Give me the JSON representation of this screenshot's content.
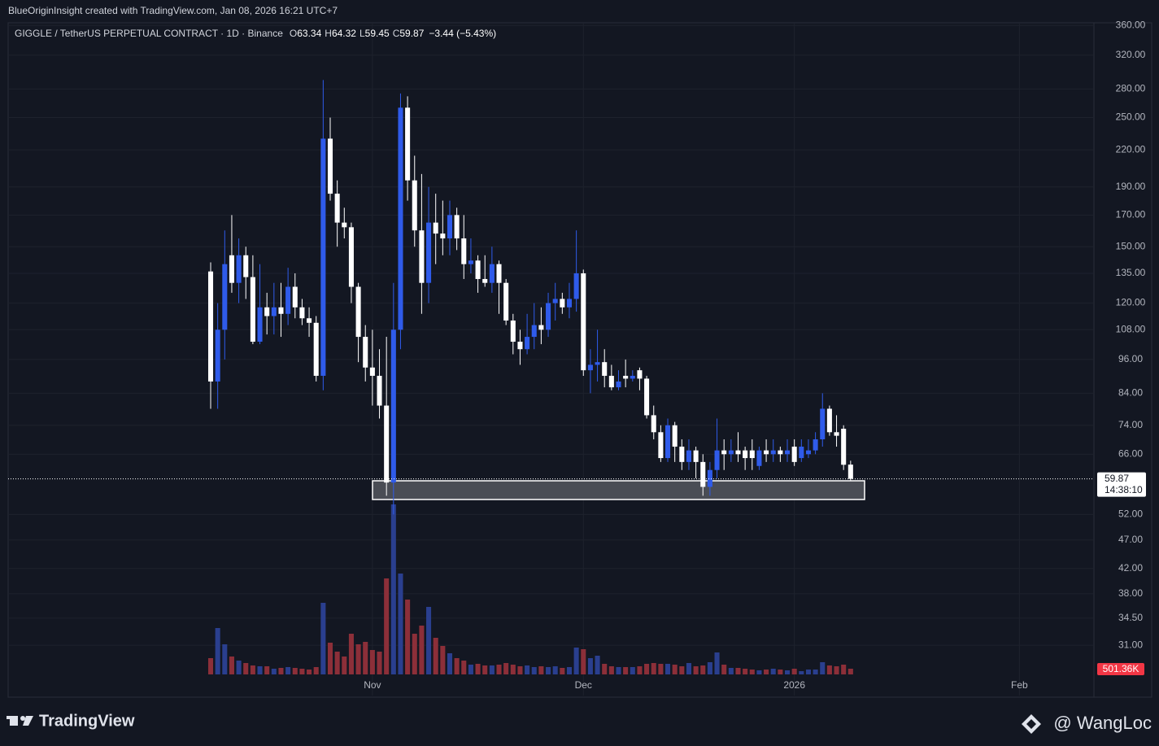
{
  "header": {
    "credit": "BlueOriginInsight created with TradingView.com, Jan 08, 2026 16:21 UTC+7"
  },
  "footer": {
    "brand": "TradingView",
    "author": "@ WangLoc"
  },
  "chart_data": {
    "type": "candlestick",
    "symbol": "GIGGLE / TetherUS PERPETUAL CONTRACT · 1D · Binance",
    "legend_keys": [
      "O",
      "H",
      "L",
      "C"
    ],
    "change_label": "−3.44 (−5.43%)",
    "countdown": "14:38:10",
    "last_volume_label": "501.36K",
    "up_color": "#2f5bea",
    "down_color": "#ffffff",
    "volume_up_color": "#2a3f8f",
    "volume_down_color": "#8c2f39",
    "log_scale": true,
    "grid": true,
    "ylim": [
      25.4,
      383
    ],
    "yticks": [
      {
        "value": 360,
        "label": "360.00"
      },
      {
        "value": 320,
        "label": "320.00"
      },
      {
        "value": 280,
        "label": "280.00"
      },
      {
        "value": 250,
        "label": "250.00"
      },
      {
        "value": 220,
        "label": "220.00"
      },
      {
        "value": 190,
        "label": "190.00"
      },
      {
        "value": 170,
        "label": "170.00"
      },
      {
        "value": 150,
        "label": "150.00"
      },
      {
        "value": 135,
        "label": "135.00"
      },
      {
        "value": 120,
        "label": "120.00"
      },
      {
        "value": 108,
        "label": "108.00"
      },
      {
        "value": 96,
        "label": "96.00"
      },
      {
        "value": 84,
        "label": "84.00"
      },
      {
        "value": 74,
        "label": "74.00"
      },
      {
        "value": 66,
        "label": "66.00"
      },
      {
        "value": 52,
        "label": "52.00"
      },
      {
        "value": 47,
        "label": "47.00"
      },
      {
        "value": 42,
        "label": "42.00"
      },
      {
        "value": 38,
        "label": "38.00"
      },
      {
        "value": 34.5,
        "label": "34.50"
      },
      {
        "value": 31,
        "label": "31.00"
      }
    ],
    "xlim": [
      -28.8,
      125.6
    ],
    "xticks": [
      {
        "value": 23,
        "label": "Nov"
      },
      {
        "value": 53,
        "label": "Dec"
      },
      {
        "value": 83,
        "label": "2026"
      },
      {
        "value": 115,
        "label": "Feb"
      }
    ],
    "y2lim": [
      0,
      58500000
    ],
    "open": [
      136,
      88,
      108,
      145,
      130,
      145,
      133,
      103,
      118,
      114,
      118,
      115,
      128,
      118,
      113,
      111,
      90,
      230,
      185,
      165,
      162,
      128,
      105,
      93,
      90,
      80,
      59,
      108,
      260,
      195,
      160,
      130,
      165,
      158,
      155,
      170,
      155,
      140,
      142,
      132,
      130,
      140,
      130,
      112,
      103,
      100,
      105,
      110,
      108,
      120,
      122,
      118,
      122,
      135,
      92,
      94,
      95,
      90,
      86,
      90,
      89,
      92,
      89,
      77,
      72,
      65,
      74,
      68,
      64,
      67,
      64,
      58,
      62,
      67,
      66,
      67,
      67,
      67,
      63,
      67,
      66,
      67,
      66,
      68,
      65,
      66,
      67,
      70,
      79,
      72,
      73,
      63.34
    ],
    "high": [
      141,
      120,
      160,
      170,
      155,
      150,
      145,
      140,
      125,
      130,
      130,
      138,
      135,
      122,
      118,
      114,
      290,
      250,
      195,
      175,
      165,
      130,
      110,
      108,
      100,
      105,
      130,
      275,
      272,
      215,
      200,
      190,
      185,
      180,
      180,
      175,
      170,
      155,
      145,
      145,
      150,
      142,
      132,
      115,
      108,
      115,
      120,
      118,
      125,
      130,
      125,
      130,
      160,
      137,
      100,
      108,
      100,
      94,
      92,
      96,
      92,
      93,
      90,
      80,
      74,
      76,
      75,
      70,
      70,
      68,
      66,
      64,
      76,
      70,
      70,
      72,
      68,
      70,
      68,
      70,
      70,
      68,
      70,
      70,
      70,
      70,
      72,
      84,
      80,
      77,
      74,
      64.32
    ],
    "low": [
      79,
      79,
      96,
      125,
      120,
      122,
      102,
      102,
      106,
      106,
      105,
      110,
      113,
      110,
      105,
      88,
      85,
      180,
      150,
      155,
      120,
      95,
      88,
      80,
      76,
      56,
      52,
      100,
      180,
      150,
      115,
      120,
      140,
      145,
      145,
      148,
      132,
      135,
      125,
      128,
      125,
      115,
      110,
      98,
      94,
      98,
      100,
      102,
      105,
      112,
      115,
      113,
      116,
      90,
      84,
      88,
      86,
      85,
      85,
      86,
      88,
      85,
      76,
      70,
      64,
      64,
      64,
      62,
      62,
      60,
      56,
      56,
      60,
      62,
      64,
      64,
      62,
      62,
      62,
      64,
      64,
      64,
      64,
      63,
      64,
      65,
      66,
      68,
      71,
      68,
      62,
      59.45
    ],
    "close": [
      88,
      108,
      140,
      130,
      145,
      133,
      103,
      118,
      114,
      118,
      115,
      128,
      118,
      113,
      111,
      90,
      230,
      185,
      165,
      162,
      128,
      105,
      93,
      90,
      80,
      59,
      108,
      260,
      195,
      160,
      130,
      165,
      158,
      155,
      170,
      155,
      140,
      142,
      132,
      130,
      140,
      130,
      112,
      103,
      100,
      105,
      110,
      108,
      120,
      122,
      118,
      122,
      135,
      92,
      94,
      95,
      90,
      86,
      88,
      89,
      90,
      89,
      77,
      72,
      65,
      74,
      68,
      64,
      67,
      64,
      58,
      62,
      67,
      66,
      67,
      66,
      65,
      65,
      67,
      66,
      67,
      66,
      67,
      64,
      68,
      67,
      70,
      79,
      72,
      71,
      63.3,
      59.87
    ],
    "volume": [
      1432000,
      4081200,
      2649200,
      1575200,
      1217200,
      1002400,
      787600,
      716000,
      716000,
      501200,
      572800,
      644400,
      572800,
      501200,
      429600,
      644400,
      6300800,
      2792400,
      2004800,
      1575200,
      3580000,
      2649200,
      2864000,
      2148000,
      2004800,
      8448800,
      14964400,
      8878400,
      6587200,
      3580000,
      4296000,
      5942800,
      3222000,
      2506000,
      1861600,
      1432000,
      1217200,
      859200,
      930800,
      787600,
      787600,
      859200,
      1002400,
      859200,
      716000,
      787600,
      644400,
      716000,
      644400,
      716000,
      572800,
      644400,
      2362800,
      2219600,
      1432000,
      1646800,
      930800,
      716000,
      644400,
      644400,
      644400,
      716000,
      930800,
      1002400,
      930800,
      930800,
      859200,
      716000,
      1002400,
      716000,
      787600,
      1074000,
      1933200,
      859200,
      572800,
      572800,
      501200,
      429600,
      358000,
      429600,
      501200,
      429600,
      358000,
      501200,
      286400,
      429600,
      429600,
      1074000,
      787600,
      716000,
      859200,
      501360
    ]
  }
}
